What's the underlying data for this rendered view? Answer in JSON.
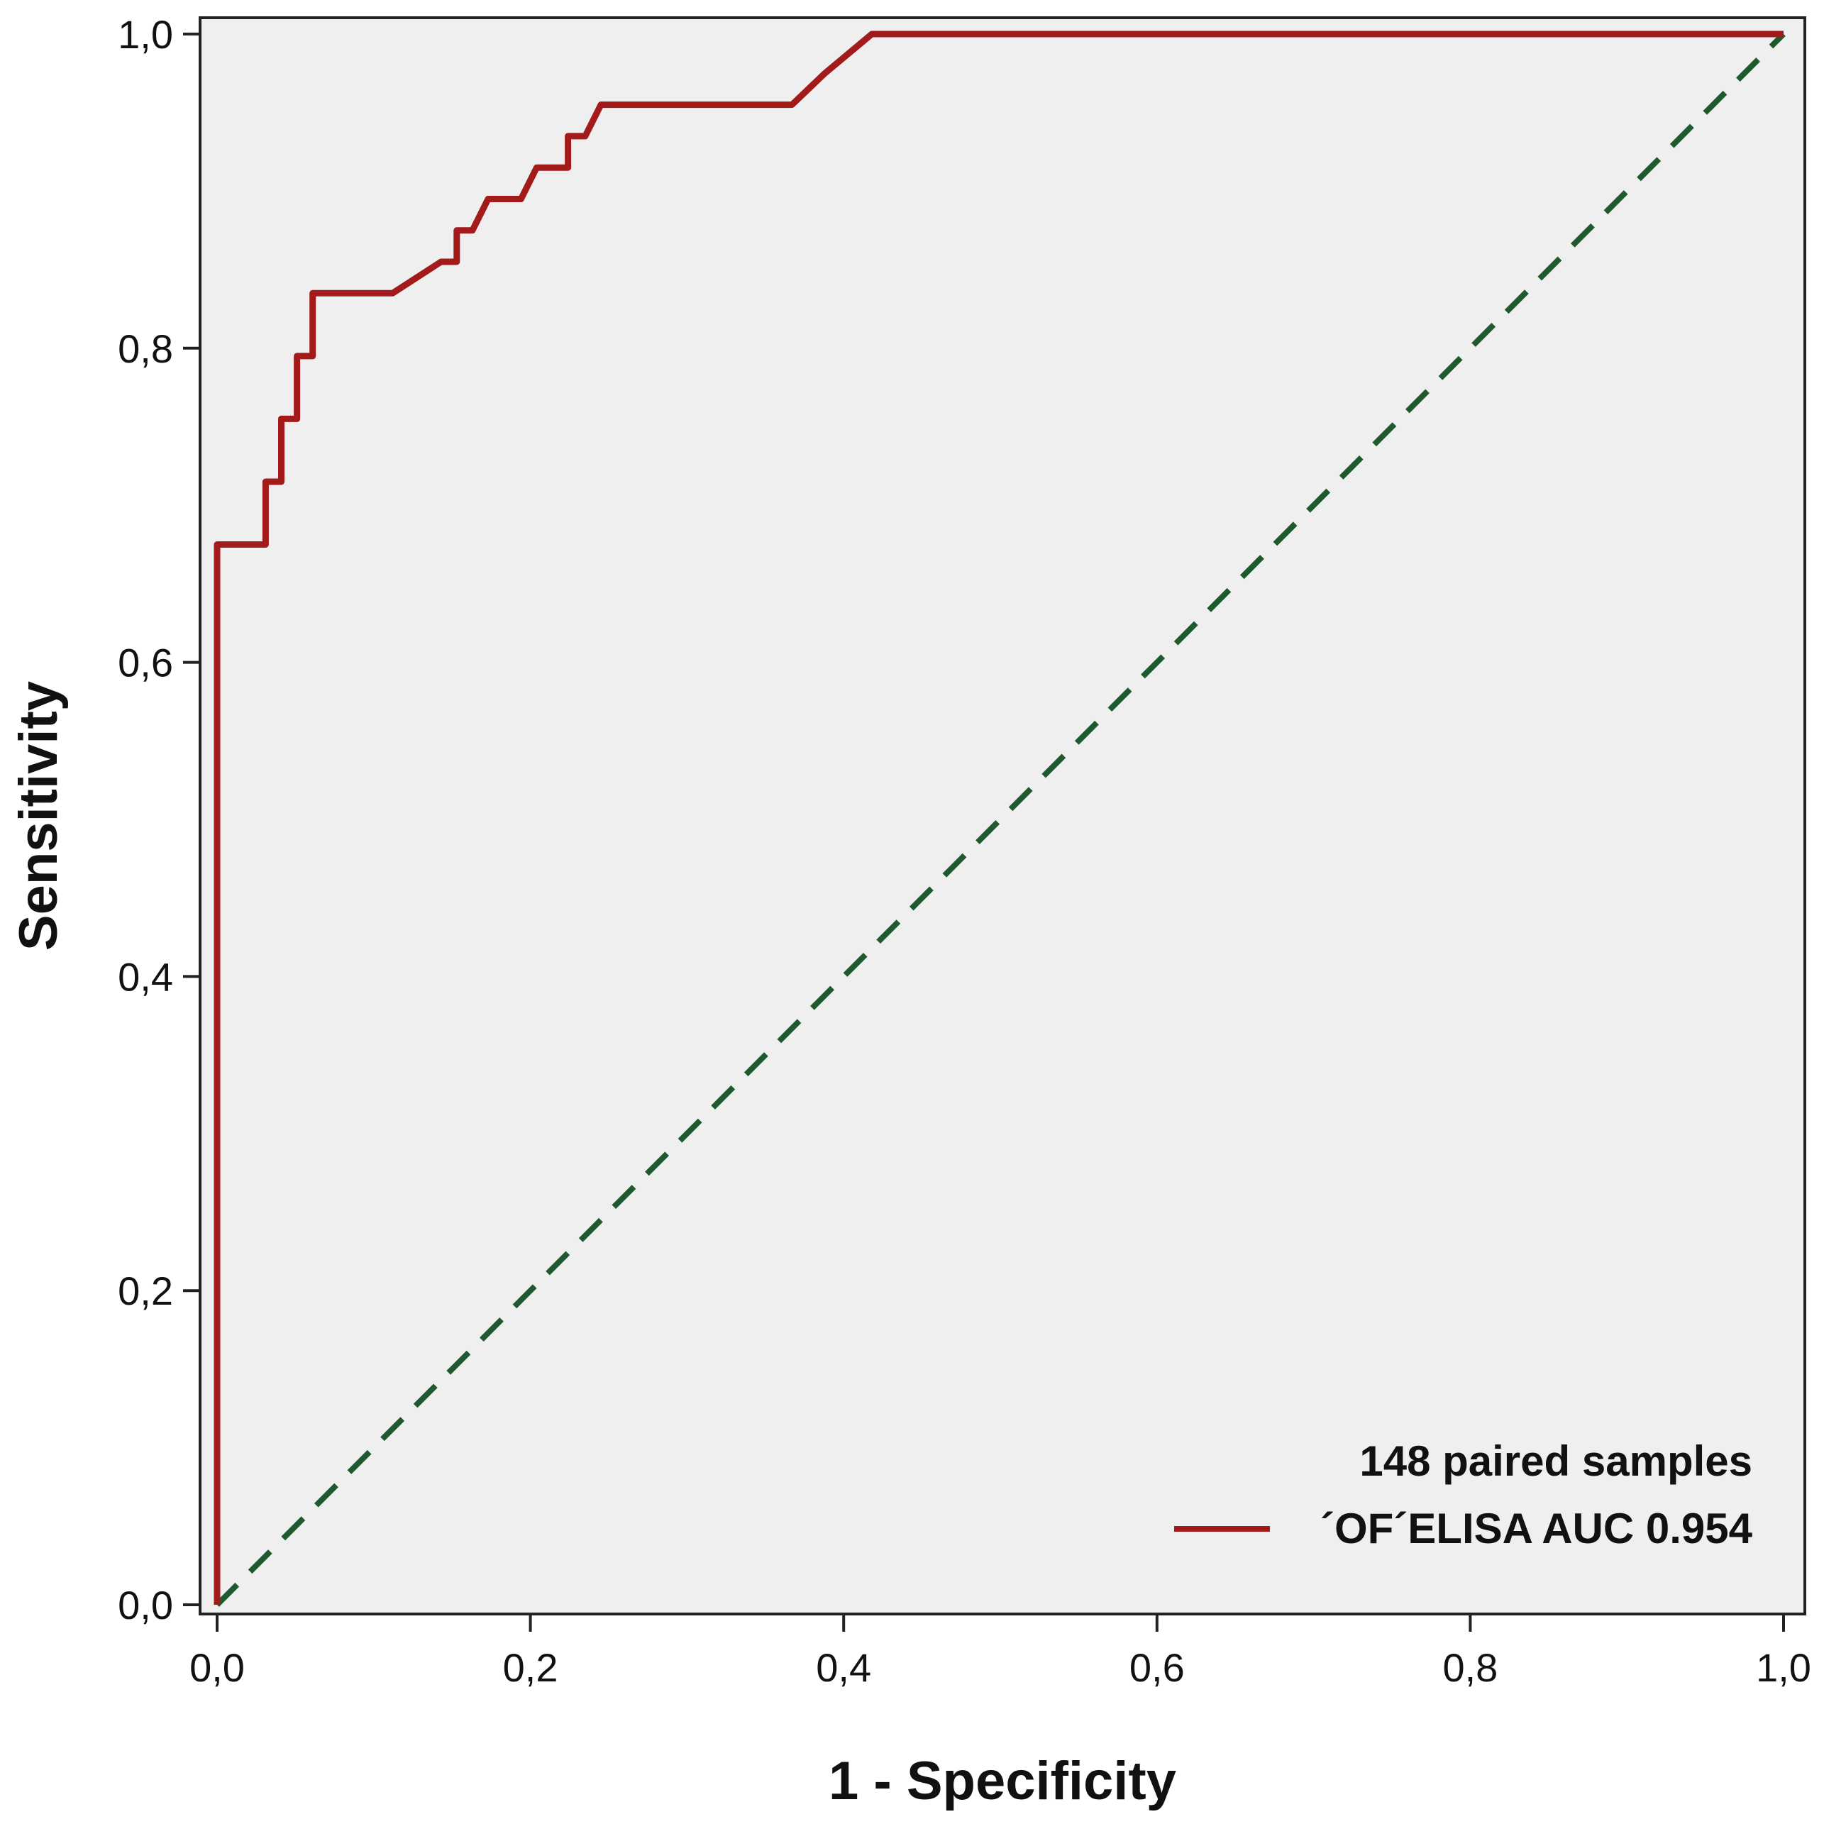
{
  "chart_data": {
    "type": "line",
    "title": "",
    "xlabel": "1 - Specificity",
    "ylabel": "Sensitivity",
    "xlim": [
      0,
      1
    ],
    "ylim": [
      0,
      1
    ],
    "grid": false,
    "x_ticks": [
      0,
      0.2,
      0.4,
      0.6,
      0.8,
      1.0
    ],
    "y_ticks": [
      0,
      0.2,
      0.4,
      0.6,
      0.8,
      1.0
    ],
    "x_tick_labels": [
      "0,0",
      "0,2",
      "0,4",
      "0,6",
      "0,8",
      "1,0"
    ],
    "y_tick_labels": [
      "0,0",
      "0,2",
      "0,4",
      "0,6",
      "0,8",
      "1,0"
    ],
    "legend": {
      "placement": "bottom-right",
      "header": "148 paired samples",
      "entries": [
        "´OF´ELISA AUC 0.954"
      ]
    },
    "series": [
      {
        "name": "´OF´ELISA AUC 0.954",
        "color": "#a31a1a",
        "style": "solid",
        "x": [
          0,
          0,
          0.031,
          0.031,
          0.041,
          0.041,
          0.051,
          0.051,
          0.061,
          0.061,
          0.112,
          0.143,
          0.153,
          0.153,
          0.163,
          0.173,
          0.194,
          0.204,
          0.224,
          0.224,
          0.235,
          0.245,
          0.367,
          0.388,
          0.418,
          1.0
        ],
        "y": [
          0,
          0.675,
          0.675,
          0.715,
          0.715,
          0.755,
          0.755,
          0.795,
          0.795,
          0.835,
          0.835,
          0.855,
          0.855,
          0.875,
          0.875,
          0.895,
          0.895,
          0.915,
          0.915,
          0.935,
          0.935,
          0.955,
          0.955,
          0.975,
          1.0,
          1.0
        ]
      },
      {
        "name": "Reference line",
        "color": "#1f5a2e",
        "style": "dashed",
        "x": [
          0,
          1
        ],
        "y": [
          0,
          1
        ]
      }
    ]
  }
}
